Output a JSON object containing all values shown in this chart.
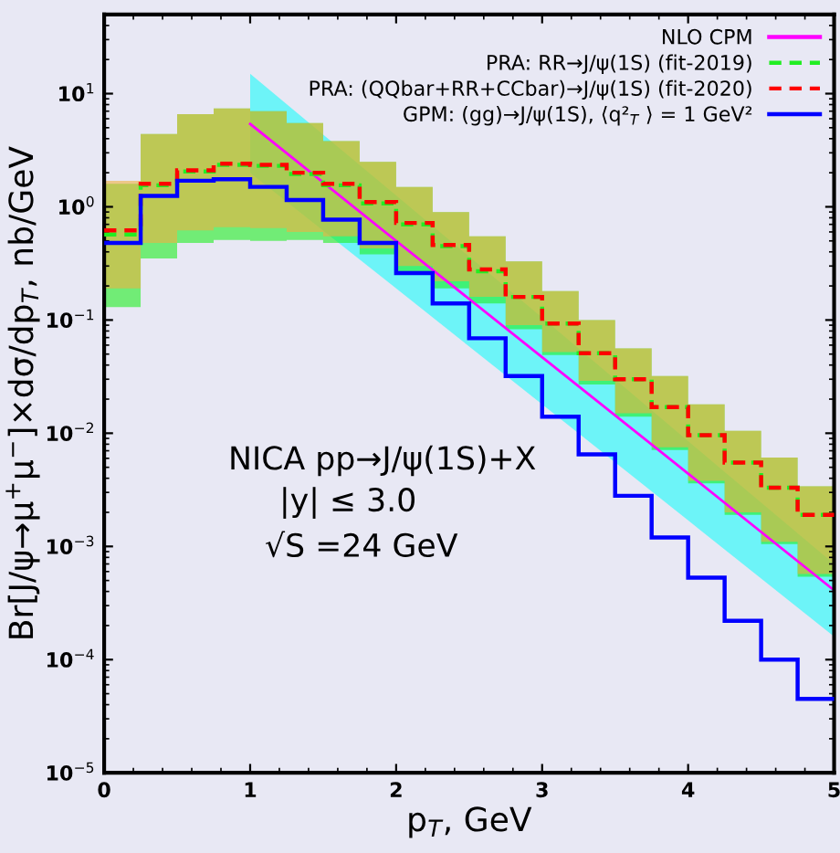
{
  "chart_data": {
    "type": "step",
    "xlabel": "p$_{T}$, GeV",
    "ylabel": "Br[J/ψ→μ$^{+}$μ$^{−}$]×dσ/dp$_{T}$, nb/GeV",
    "log": "y",
    "xlim": [
      0,
      5
    ],
    "ylim": [
      1e-05,
      50
    ],
    "xticks": [
      0,
      1,
      2,
      3,
      4,
      5
    ],
    "yticks": [
      {
        "value": 1e-05,
        "label": "10$^{−5}$"
      },
      {
        "value": 0.0001,
        "label": "10$^{−4}$"
      },
      {
        "value": 0.001,
        "label": "10$^{−3}$"
      },
      {
        "value": 0.01,
        "label": "10$^{−2}$"
      },
      {
        "value": 0.1,
        "label": "10$^{−1}$"
      },
      {
        "value": 1,
        "label": "10$^{0}$"
      },
      {
        "value": 10,
        "label": "10$^{1}$"
      }
    ],
    "grid": false,
    "legend": "top right",
    "x": [
      0,
      0.25,
      0.5,
      0.75,
      1,
      1.25,
      1.5,
      1.75,
      2,
      2.25,
      2.5,
      2.75,
      3,
      3.25,
      3.5,
      3.75,
      4,
      4.25,
      4.5,
      4.75
    ],
    "series": [
      {
        "name": "NLO CPM",
        "type": "line",
        "color": "#ff00ff",
        "line_style": "solid",
        "x": [
          1,
          2,
          3,
          4,
          5
        ],
        "values": [
          5.4,
          0.5,
          0.047,
          0.0044,
          0.00041
        ],
        "lower": [
          2.0,
          0.19,
          0.018,
          0.0017,
          0.00016
        ],
        "upper": [
          15,
          1.26,
          0.105,
          0.0085,
          0.0007
        ]
      },
      {
        "name": "PRA: RR→J/ψ(1S) (fit-2019)",
        "type": "step",
        "color": "#22ee22",
        "line_style": "dashed",
        "values": [
          0.57,
          1.55,
          2.05,
          2.35,
          2.3,
          1.95,
          1.55,
          1.07,
          0.7,
          0.45,
          0.27,
          0.16,
          0.093,
          0.051,
          0.03,
          0.017,
          0.0096,
          0.0055,
          0.0033,
          0.0019
        ],
        "lower": [
          0.13,
          0.35,
          0.48,
          0.51,
          0.5,
          0.51,
          0.48,
          0.38,
          0.27,
          0.19,
          0.14,
          0.083,
          0.049,
          0.027,
          0.014,
          0.0071,
          0.0036,
          0.0019,
          0.00105,
          0.00054
        ],
        "upper": [
          1.6,
          4.4,
          6.6,
          7.4,
          7.0,
          5.5,
          3.8,
          2.5,
          1.5,
          0.9,
          0.55,
          0.33,
          0.18,
          0.1,
          0.056,
          0.032,
          0.018,
          0.0105,
          0.0061,
          0.0034
        ]
      },
      {
        "name": "PRA: (QQbar+RR+CCbar)→J/ψ(1S) (fit-2020)",
        "type": "step",
        "color": "#ff0000",
        "line_style": "dashed",
        "values": [
          0.62,
          1.6,
          2.1,
          2.4,
          2.35,
          2.0,
          1.6,
          1.1,
          0.72,
          0.46,
          0.28,
          0.16,
          0.093,
          0.051,
          0.03,
          0.017,
          0.0096,
          0.0055,
          0.0033,
          0.0019
        ],
        "lower": [
          0.19,
          0.48,
          0.62,
          0.66,
          0.65,
          0.6,
          0.55,
          0.43,
          0.3,
          0.22,
          0.16,
          0.09,
          0.052,
          0.029,
          0.015,
          0.0075,
          0.0038,
          0.002,
          0.0011,
          0.00057
        ],
        "upper": [
          1.7,
          4.4,
          6.6,
          7.4,
          7.0,
          5.5,
          3.8,
          2.5,
          1.5,
          0.9,
          0.55,
          0.33,
          0.18,
          0.1,
          0.056,
          0.032,
          0.018,
          0.0105,
          0.0061,
          0.0034
        ]
      },
      {
        "name": "GPM: (gg)→J/ψ(1S), ⟨q²$_{T}$ ⟩ = 1 GeV²",
        "color": "#0000ff",
        "line_style": "solid",
        "values": [
          0.48,
          1.25,
          1.7,
          1.75,
          1.5,
          1.15,
          0.77,
          0.48,
          0.26,
          0.14,
          0.069,
          0.032,
          0.014,
          0.0065,
          0.0028,
          0.0012,
          0.00053,
          0.00022,
          0.0001,
          4.5e-05
        ]
      }
    ],
    "annotations": [
      "NICA pp→J/ψ(1S)+X",
      "|y| ≤ 3.0",
      "√S =24 GeV"
    ]
  }
}
